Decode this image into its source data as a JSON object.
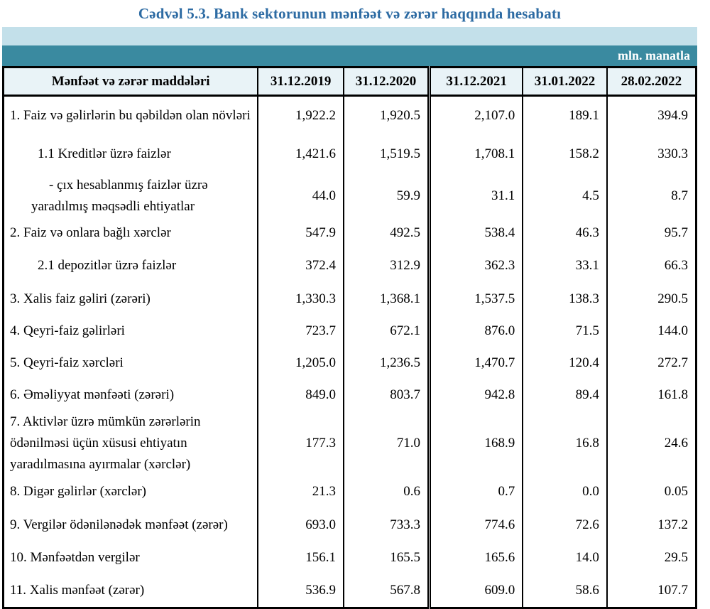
{
  "page_title": "Cədvəl 5.3. Bank sektorunun mənfəət və zərər haqqında hesabatı",
  "unit_label": "mln. manatla",
  "colors": {
    "title_blue": "#2d6ba3",
    "band_light_blue": "#c3e0ea",
    "band_teal": "#3a8aa0",
    "header_cell_bg": "#e9f3f7",
    "border": "#000000"
  },
  "table": {
    "header": {
      "item_col": "Mənfəət və zərər maddələri",
      "date_cols": [
        "31.12.2019",
        "31.12.2020",
        "31.12.2021",
        "31.01.2022",
        "28.02.2022"
      ]
    },
    "rows": [
      {
        "label": "1. Faiz və gəlirlərin bu qəbildən olan növləri",
        "indent": 0,
        "values": [
          "1,922.2",
          "1,920.5",
          "2,107.0",
          "189.1",
          "394.9"
        ]
      },
      {
        "label": "1.1 Kreditlər üzrə faizlər",
        "indent": 1,
        "values": [
          "1,421.6",
          "1,519.5",
          "1,708.1",
          "158.2",
          "330.3"
        ]
      },
      {
        "label": "-  çıx hesablanmış faizlər üzrə yaradılmış məqsədli ehtiyatlar",
        "indent": 2,
        "values": [
          "44.0",
          "59.9",
          "31.1",
          "4.5",
          "8.7"
        ]
      },
      {
        "label": "2. Faiz və onlara bağlı xərclər",
        "indent": 0,
        "values": [
          "547.9",
          "492.5",
          "538.4",
          "46.3",
          "95.7"
        ]
      },
      {
        "label": "2.1 depozitlər üzrə faizlər",
        "indent": 1,
        "values": [
          "372.4",
          "312.9",
          "362.3",
          "33.1",
          "66.3"
        ]
      },
      {
        "label": "3. Xalis faiz gəliri (zərəri)",
        "indent": 0,
        "values": [
          "1,330.3",
          "1,368.1",
          "1,537.5",
          "138.3",
          "290.5"
        ]
      },
      {
        "label": "4. Qeyri-faiz gəlirləri",
        "indent": 0,
        "values": [
          "723.7",
          "672.1",
          "876.0",
          "71.5",
          "144.0"
        ]
      },
      {
        "label": "5. Qeyri-faiz xərcləri",
        "indent": 0,
        "values": [
          "1,205.0",
          "1,236.5",
          "1,470.7",
          "120.4",
          "272.7"
        ]
      },
      {
        "label": "6. Əməliyyat mənfəəti (zərəri)",
        "indent": 0,
        "values": [
          "849.0",
          "803.7",
          "942.8",
          "89.4",
          "161.8"
        ]
      },
      {
        "label": "7. Aktivlər üzrə mümkün zərərlərin ödənilməsi üçün xüsusi ehtiyatın yaradılmasına ayırmalar (xərclər)",
        "indent": 0,
        "values": [
          "177.3",
          "71.0",
          "168.9",
          "16.8",
          "24.6"
        ]
      },
      {
        "label": "8. Digər gəlirlər (xərclər)",
        "indent": 0,
        "values": [
          "21.3",
          "0.6",
          "0.7",
          "0.0",
          "0.05"
        ]
      },
      {
        "label": "9. Vergilər ödənilənədək mənfəət (zərər)",
        "indent": 0,
        "values": [
          "693.0",
          "733.3",
          "774.6",
          "72.6",
          "137.2"
        ]
      },
      {
        "label": "10. Mənfəətdən vergilər",
        "indent": 0,
        "values": [
          "156.1",
          "165.5",
          "165.6",
          "14.0",
          "29.5"
        ]
      },
      {
        "label": "11. Xalis mənfəət (zərər)",
        "indent": 0,
        "values": [
          "536.9",
          "567.8",
          "609.0",
          "58.6",
          "107.7"
        ]
      }
    ]
  }
}
